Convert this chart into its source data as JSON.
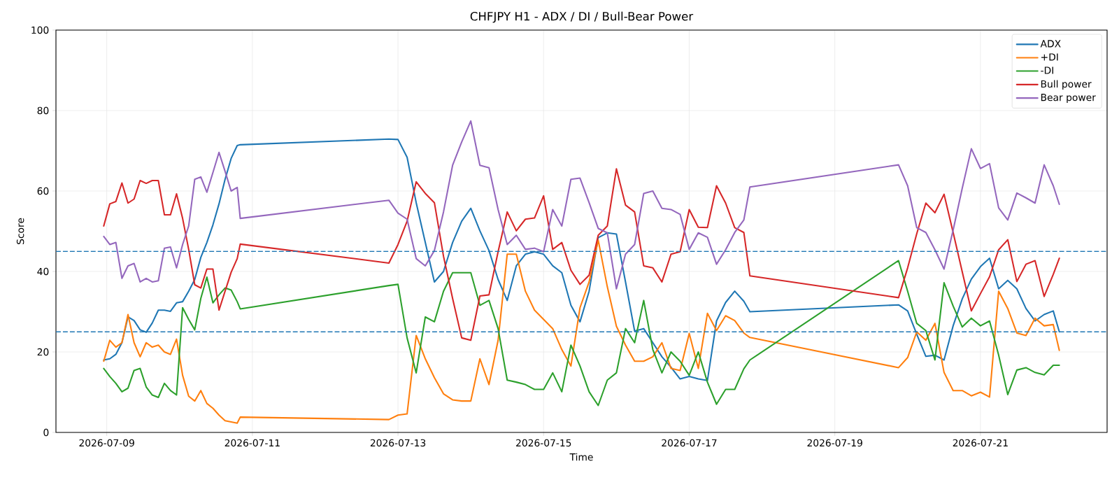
{
  "chart_data": {
    "type": "line",
    "title": "CHFJPY H1 - ADX / DI / Bull-Bear Power",
    "xlabel": "Time",
    "ylabel": "Score",
    "x": [
      "2026-07-08T23:00",
      "2026-07-09T01:00",
      "2026-07-09T03:00",
      "2026-07-09T05:00",
      "2026-07-09T07:00",
      "2026-07-09T09:00",
      "2026-07-09T11:00",
      "2026-07-09T13:00",
      "2026-07-09T15:00",
      "2026-07-09T17:00",
      "2026-07-09T19:00",
      "2026-07-09T21:00",
      "2026-07-09T23:00",
      "2026-07-10T01:00",
      "2026-07-10T03:00",
      "2026-07-10T05:00",
      "2026-07-10T07:00",
      "2026-07-10T09:00",
      "2026-07-10T11:00",
      "2026-07-10T13:00",
      "2026-07-10T15:00",
      "2026-07-10T17:00",
      "2026-07-10T19:00",
      "2026-07-10T20:00",
      "2026-07-12T21:00",
      "2026-07-13T00:00",
      "2026-07-13T03:00",
      "2026-07-13T06:00",
      "2026-07-13T09:00",
      "2026-07-13T12:00",
      "2026-07-13T15:00",
      "2026-07-13T18:00",
      "2026-07-13T21:00",
      "2026-07-14T00:00",
      "2026-07-14T03:00",
      "2026-07-14T06:00",
      "2026-07-14T09:00",
      "2026-07-14T12:00",
      "2026-07-14T15:00",
      "2026-07-14T18:00",
      "2026-07-14T21:00",
      "2026-07-15T00:00",
      "2026-07-15T03:00",
      "2026-07-15T06:00",
      "2026-07-15T09:00",
      "2026-07-15T12:00",
      "2026-07-15T15:00",
      "2026-07-15T18:00",
      "2026-07-15T21:00",
      "2026-07-16T00:00",
      "2026-07-16T03:00",
      "2026-07-16T06:00",
      "2026-07-16T09:00",
      "2026-07-16T12:00",
      "2026-07-16T15:00",
      "2026-07-16T18:00",
      "2026-07-16T21:00",
      "2026-07-17T00:00",
      "2026-07-17T03:00",
      "2026-07-17T06:00",
      "2026-07-17T09:00",
      "2026-07-17T12:00",
      "2026-07-17T15:00",
      "2026-07-17T18:00",
      "2026-07-17T20:00",
      "2026-07-19T21:00",
      "2026-07-20T00:00",
      "2026-07-20T03:00",
      "2026-07-20T06:00",
      "2026-07-20T09:00",
      "2026-07-20T12:00",
      "2026-07-20T15:00",
      "2026-07-20T18:00",
      "2026-07-20T21:00",
      "2026-07-21T00:00",
      "2026-07-21T03:00",
      "2026-07-21T06:00",
      "2026-07-21T09:00",
      "2026-07-21T12:00",
      "2026-07-21T15:00",
      "2026-07-21T18:00",
      "2026-07-21T21:00",
      "2026-07-22T00:00",
      "2026-07-22T02:00"
    ],
    "series": [
      {
        "name": "ADX",
        "color": "#1f77b4",
        "values": [
          18,
          18.3,
          19.4,
          22.3,
          28.7,
          27.8,
          25.5,
          24.9,
          27.2,
          30.4,
          30.4,
          30.1,
          32.2,
          32.5,
          35.1,
          38,
          43.5,
          47.2,
          51.6,
          56.8,
          62.9,
          68.1,
          71.3,
          71.5,
          72.9,
          72.8,
          68.4,
          57.1,
          47.2,
          37.4,
          40,
          47.2,
          52.5,
          55.7,
          50.1,
          45.2,
          38,
          32.8,
          41.4,
          44.3,
          44.9,
          44.3,
          41.4,
          39.7,
          31.6,
          27.5,
          35.1,
          48.4,
          49.6,
          49.3,
          37.4,
          25.2,
          25.8,
          22.3,
          18.8,
          16.2,
          13.3,
          13.9,
          13.3,
          12.9,
          27.7,
          32.3,
          35.1,
          32.6,
          30.0,
          31.7,
          30.2,
          24.4,
          18.9,
          19.2,
          18,
          26.5,
          33.2,
          38.1,
          41.2,
          43.3,
          35.7,
          37.8,
          35.7,
          30.8,
          27.7,
          29.3,
          30.2,
          25.0
        ]
      },
      {
        "name": "+DI",
        "color": "#ff7f0e",
        "values": [
          17.7,
          22.9,
          21.2,
          22.3,
          29.3,
          22.3,
          18.8,
          22.3,
          21.2,
          21.7,
          20,
          19.4,
          23.2,
          14.2,
          9,
          7.8,
          10.4,
          7.2,
          6,
          4.3,
          2.9,
          2.6,
          2.3,
          3.8,
          3.2,
          4.3,
          4.6,
          24.1,
          18.3,
          13.6,
          9.6,
          8.1,
          7.8,
          7.8,
          18.3,
          11.9,
          22.9,
          44.3,
          44.3,
          35.1,
          30.4,
          28.1,
          25.8,
          20.6,
          16.5,
          31,
          37.4,
          47.8,
          36.2,
          26.4,
          21.7,
          17.7,
          17.7,
          18.8,
          22.3,
          15.9,
          15.4,
          24.6,
          15.9,
          29.6,
          25.3,
          29,
          27.8,
          24.7,
          23.6,
          16.1,
          18.6,
          25,
          22.9,
          27.1,
          14.9,
          10.4,
          10.4,
          9.1,
          10,
          8.8,
          35.1,
          30.8,
          24.7,
          24.1,
          28.4,
          26.5,
          26.8,
          20.4
        ]
      },
      {
        "name": "-DI",
        "color": "#2ca02c",
        "values": [
          15.9,
          13.9,
          12.2,
          10.1,
          11,
          15.4,
          15.9,
          11.3,
          9.3,
          8.7,
          12.2,
          10.4,
          9.3,
          31,
          28.1,
          25.5,
          33.3,
          38.6,
          32.2,
          34.2,
          35.9,
          35.4,
          32.5,
          30.7,
          36.5,
          36.8,
          23.5,
          14.8,
          28.7,
          27.5,
          35.1,
          39.7,
          39.7,
          39.7,
          31.6,
          32.8,
          25.8,
          13,
          12.5,
          11.9,
          10.7,
          10.7,
          14.8,
          10.1,
          21.7,
          16.5,
          10.1,
          6.7,
          13,
          14.8,
          25.8,
          22.3,
          32.8,
          20.6,
          14.8,
          20,
          17.7,
          14.2,
          20,
          12.5,
          7,
          10.7,
          10.7,
          15.8,
          18.0,
          42.7,
          35.1,
          27.1,
          25.3,
          18,
          37.2,
          31.4,
          26.2,
          28.4,
          26.5,
          27.7,
          19.2,
          9.4,
          15.5,
          16.1,
          14.9,
          14.3,
          16.7,
          16.7
        ]
      },
      {
        "name": "Bull power",
        "color": "#d62728",
        "values": [
          51.3,
          56.8,
          57.4,
          62,
          57,
          58,
          62.6,
          61.9,
          62.6,
          62.6,
          54.1,
          54.1,
          59.3,
          53.2,
          45.5,
          36.7,
          35.9,
          40.6,
          40.6,
          30.4,
          35.1,
          39.8,
          43.2,
          46.8,
          42.1,
          46.7,
          52.5,
          62.3,
          59.4,
          57.1,
          43.8,
          33.3,
          23.5,
          22.9,
          33.9,
          34.2,
          44.9,
          54.8,
          50.1,
          53,
          53.3,
          58.8,
          45.5,
          47.2,
          40.3,
          36.8,
          39.1,
          49,
          51.3,
          65.5,
          56.5,
          54.8,
          41.4,
          40.9,
          37.4,
          44.3,
          44.9,
          55.4,
          51,
          50.9,
          61.3,
          57,
          50.9,
          49.7,
          38.9,
          33.5,
          40.9,
          49.4,
          57,
          54.6,
          59.2,
          49.7,
          39.9,
          30.2,
          34.5,
          38.7,
          45.4,
          47.9,
          37.5,
          41.8,
          42.7,
          33.8,
          39.3,
          43.3
        ]
      },
      {
        "name": "Bear power",
        "color": "#9467bd",
        "values": [
          48.7,
          46.7,
          47.2,
          38.3,
          41.4,
          42,
          37.4,
          38.3,
          37.4,
          37.7,
          45.8,
          46.1,
          40.9,
          46.7,
          51.3,
          62.9,
          63.5,
          59.7,
          64.6,
          69.6,
          64.9,
          60,
          60.9,
          53.2,
          57.7,
          54.5,
          53,
          43.2,
          41.4,
          45.2,
          54.8,
          66.4,
          72.2,
          77.4,
          66.4,
          65.8,
          55.4,
          46.7,
          49,
          45.5,
          45.8,
          44.9,
          55.4,
          51.3,
          62.9,
          63.2,
          57.1,
          50.7,
          49.6,
          35.7,
          44.3,
          46.7,
          59.4,
          60,
          55.7,
          55.4,
          54.2,
          45.5,
          49.6,
          48.5,
          41.8,
          45.4,
          49.7,
          52.8,
          61,
          66.5,
          61.3,
          50.9,
          49.7,
          45.4,
          40.6,
          50.3,
          60.7,
          70.5,
          65.6,
          66.8,
          55.8,
          52.8,
          59.5,
          58.3,
          57,
          66.5,
          61.3,
          56.7
        ]
      }
    ],
    "xlim": [
      "2026-07-08T07:15",
      "2026-07-22T17:45"
    ],
    "xticks": [
      "2026-07-09",
      "2026-07-11",
      "2026-07-13",
      "2026-07-15",
      "2026-07-17",
      "2026-07-19",
      "2026-07-21"
    ],
    "ylim": [
      0,
      100
    ],
    "yticks": [
      0,
      20,
      40,
      60,
      80,
      100
    ],
    "ref_lines": [
      {
        "axis": "y",
        "value": 45,
        "color": "#1f77b4",
        "line_style": "dashed"
      },
      {
        "axis": "y",
        "value": 25,
        "color": "#1f77b4",
        "line_style": "dashed"
      }
    ],
    "grid": true,
    "legend": "top right"
  }
}
